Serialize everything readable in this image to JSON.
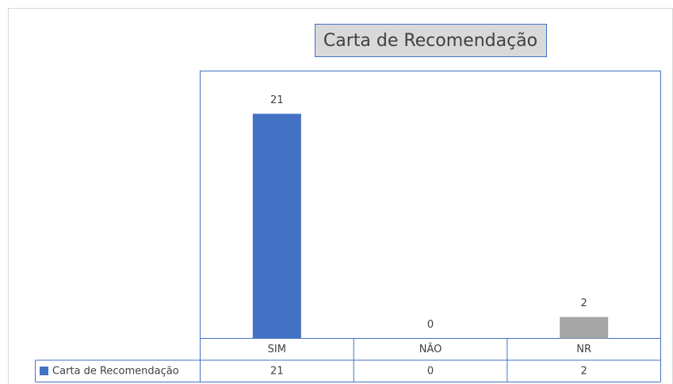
{
  "chart_data": {
    "type": "bar",
    "title": "Carta de Recomendação",
    "categories": [
      "SIM",
      "NÃO",
      "NR"
    ],
    "series": [
      {
        "name": "Carta de Recomendação",
        "color": "#4472c4",
        "values": [
          21,
          0,
          2
        ],
        "point_colors": [
          "#4472c4",
          "#4472c4",
          "#a5a5a5"
        ]
      }
    ],
    "ylim": [
      0,
      25
    ],
    "data_table": true,
    "data_labels": true
  }
}
